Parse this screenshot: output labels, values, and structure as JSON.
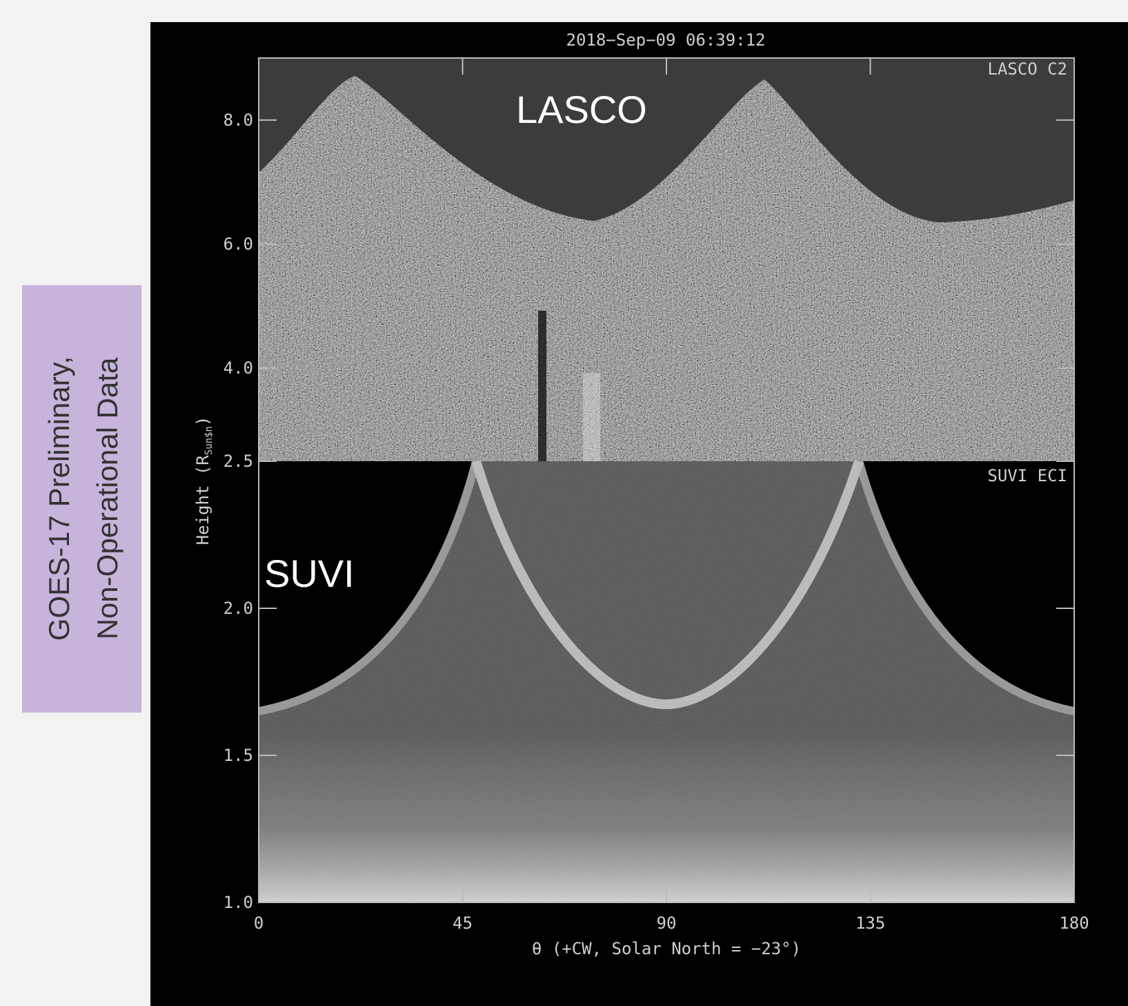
{
  "chart_data": [
    {
      "type": "image",
      "title": "2018−Sep−09 06:39:12",
      "panel_label": "LASCO C2",
      "overlay_label": "LASCO",
      "ylim": [
        2.5,
        9.0
      ],
      "yticks": [
        {
          "value": 4.0,
          "label": "4.0"
        },
        {
          "value": 6.0,
          "label": "6.0"
        },
        {
          "value": 8.0,
          "label": "8.0"
        }
      ]
    },
    {
      "type": "image",
      "panel_label": "SUVI ECI",
      "overlay_label": "SUVI",
      "ylim": [
        1.0,
        2.5
      ],
      "yticks": [
        {
          "value": 1.0,
          "label": "1.0"
        },
        1.5,
        {
          "value": 2.0,
          "label": "2.0"
        },
        2.5
      ],
      "xlim": [
        0,
        180
      ],
      "xticks": [
        0,
        45,
        90,
        135,
        180
      ],
      "x_label": "θ (+CW, Solar North = −23°)",
      "y_label": {
        "text": "Height (R",
        "sub": "Sun$n",
        "close": ")"
      }
    }
  ],
  "side_note": {
    "lines": [
      "GOES-17 Preliminary,",
      "Non-Operational Data"
    ]
  }
}
